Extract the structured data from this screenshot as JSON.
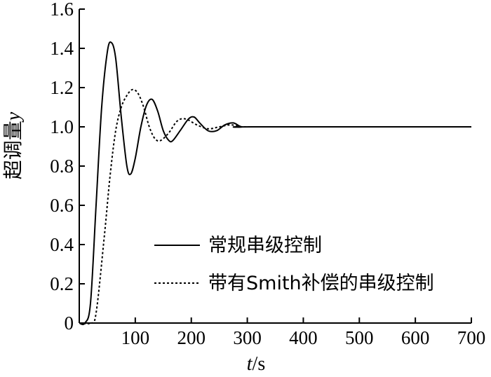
{
  "chart_data": {
    "type": "line",
    "title": "",
    "xlabel": {
      "var": "t",
      "unit": "/s"
    },
    "ylabel": {
      "main": "超调量",
      "var": "y"
    },
    "xlim": [
      0,
      700
    ],
    "ylim": [
      0,
      1.6
    ],
    "xticks": [
      100,
      200,
      300,
      400,
      500,
      600,
      700
    ],
    "yticks": [
      0,
      0.2,
      0.4,
      0.6,
      0.8,
      1.0,
      1.2,
      1.4,
      1.6
    ],
    "xtick_labels": [
      "100",
      "200",
      "300",
      "400",
      "500",
      "600",
      "700"
    ],
    "ytick_labels": [
      "0",
      "0.2",
      "0.4",
      "0.6",
      "0.8",
      "1.0",
      "1.2",
      "1.4",
      "1.6"
    ],
    "grid": false,
    "legend_position": "center-right",
    "series": [
      {
        "name": "常规串级控制",
        "style": "solid",
        "color": "#000000",
        "x": [
          0,
          10,
          20,
          30,
          40,
          50,
          57,
          65,
          75,
          85,
          92,
          100,
          110,
          120,
          130,
          140,
          150,
          160,
          167,
          180,
          195,
          205,
          215,
          230,
          245,
          260,
          275,
          290,
          310,
          700
        ],
        "y": [
          0,
          0,
          0.1,
          0.6,
          1.1,
          1.38,
          1.43,
          1.35,
          1.05,
          0.8,
          0.76,
          0.84,
          1.0,
          1.11,
          1.14,
          1.08,
          0.98,
          0.93,
          0.93,
          0.98,
          1.04,
          1.05,
          1.02,
          0.98,
          0.98,
          1.01,
          1.02,
          1.0,
          1.0,
          1.0
        ]
      },
      {
        "name": "带有Smith补偿的串级控制",
        "style": "dotted",
        "color": "#000000",
        "x": [
          0,
          20,
          30,
          45,
          55,
          65,
          75,
          85,
          95,
          105,
          115,
          125,
          135,
          145,
          160,
          175,
          190,
          210,
          230,
          250,
          270,
          290,
          310,
          700
        ],
        "y": [
          0,
          0,
          0.05,
          0.45,
          0.75,
          0.98,
          1.1,
          1.16,
          1.19,
          1.17,
          1.1,
          1.0,
          0.94,
          0.93,
          0.97,
          1.03,
          1.04,
          1.01,
          0.99,
          1.0,
          1.01,
          1.0,
          1.0,
          1.0
        ]
      }
    ]
  }
}
